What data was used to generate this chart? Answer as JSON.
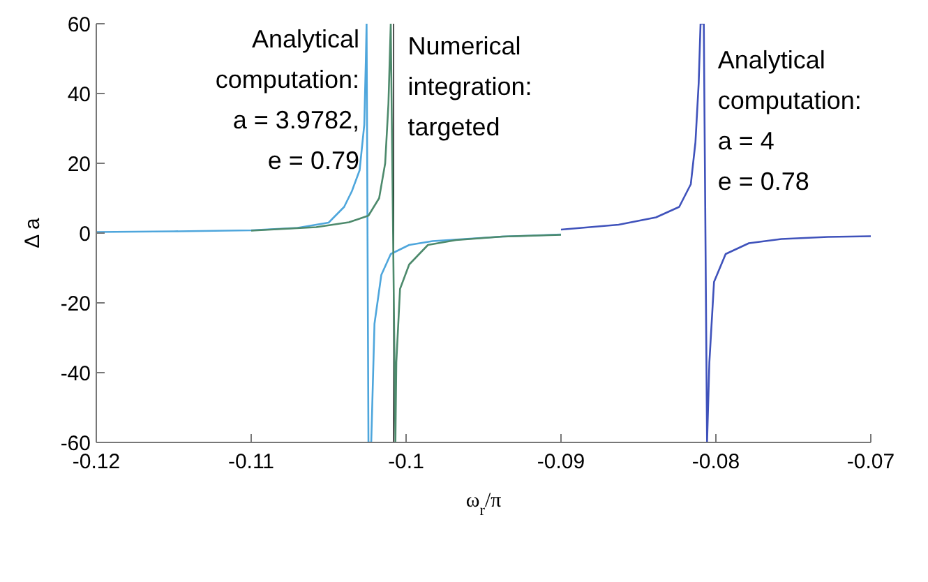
{
  "chart_data": {
    "type": "line",
    "xlabel": "ω$_{r}$/π",
    "ylabel": "Δ a",
    "xlim": [
      -0.12,
      -0.07
    ],
    "xticks": [
      -0.12,
      -0.11,
      -0.1,
      -0.09,
      -0.08,
      -0.07
    ],
    "ylim": [
      -60,
      60
    ],
    "yticks": [
      -60,
      -40,
      -20,
      0,
      20,
      40,
      60
    ],
    "grid": false,
    "marker": "none",
    "line_style": "solid",
    "series": [
      {
        "color": "#4ea6dc",
        "x": [
          -0.12,
          -0.115,
          -0.11,
          -0.107,
          -0.105,
          -0.104,
          -0.1035,
          -0.103,
          -0.1027,
          -0.1026,
          -0.10255,
          -0.10243,
          -0.10225,
          -0.10204,
          -0.1016,
          -0.10099,
          -0.0998,
          -0.09829,
          -0.09378,
          -0.09
        ],
        "values": [
          0.3,
          0.5,
          0.8,
          1.5,
          3,
          7.5,
          12,
          18,
          31,
          49,
          60,
          -60,
          -60,
          -26,
          -12,
          -6,
          -3.4,
          -2.3,
          -1,
          -0.4
        ]
      },
      {
        "color": "#4d8a6c",
        "x": [
          -0.11,
          -0.1058,
          -0.10369,
          -0.10243,
          -0.10174,
          -0.10135,
          -0.10114,
          -0.10099,
          -0.10069,
          -0.10063,
          -0.10039,
          -0.0998,
          -0.09859,
          -0.09678,
          -0.09378,
          -0.09
        ],
        "values": [
          0.7,
          1.7,
          3.1,
          5,
          10,
          20,
          37,
          60,
          -60,
          -37,
          -16,
          -9,
          -3.4,
          -2,
          -1,
          -0.5
        ]
      },
      {
        "color": "#3f52bb",
        "x": [
          -0.09,
          -0.08628,
          -0.08387,
          -0.08237,
          -0.08162,
          -0.08132,
          -0.08111,
          -0.08099,
          -0.08078,
          -0.08057,
          -0.08042,
          -0.08012,
          -0.07937,
          -0.07787,
          -0.07577,
          -0.07277,
          -0.07
        ],
        "values": [
          1,
          2.4,
          4.5,
          7.5,
          14,
          26,
          43,
          60,
          60,
          -60,
          -37,
          -14,
          -6,
          -2.9,
          -1.7,
          -1.1,
          -0.9
        ]
      }
    ],
    "ref_lines": [
      {
        "axis": "x",
        "value": -0.1008,
        "color": "#000000"
      }
    ],
    "annotations": [
      "Analytical\ncomputation:\na = 3.9782,\ne = 0.79",
      "Numerical\nintegration:\ntargeted",
      "Analytical\ncomputation:\na = 4\ne = 0.78"
    ]
  }
}
